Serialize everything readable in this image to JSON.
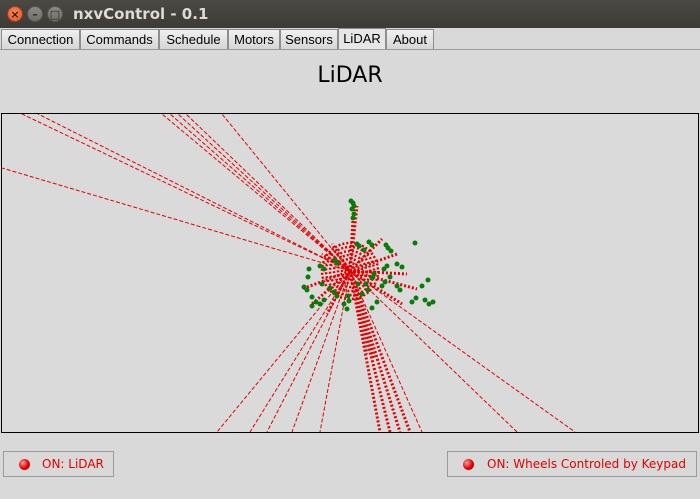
{
  "window": {
    "title": "nxvControl - 0.1"
  },
  "tabs": [
    {
      "label": "Connection"
    },
    {
      "label": "Commands"
    },
    {
      "label": "Schedule"
    },
    {
      "label": "Motors"
    },
    {
      "label": "Sensors"
    },
    {
      "label": "LiDAR",
      "active": true
    },
    {
      "label": "About"
    }
  ],
  "page": {
    "title": "LiDAR"
  },
  "lidar": {
    "ray_color": "#e00000",
    "point_color": "#0a7a0a"
  },
  "status_left": {
    "text": "ON: LiDAR",
    "color": "#e00000"
  },
  "status_right": {
    "text": "ON: Wheels Controled by Keypad",
    "color": "#e00000"
  }
}
